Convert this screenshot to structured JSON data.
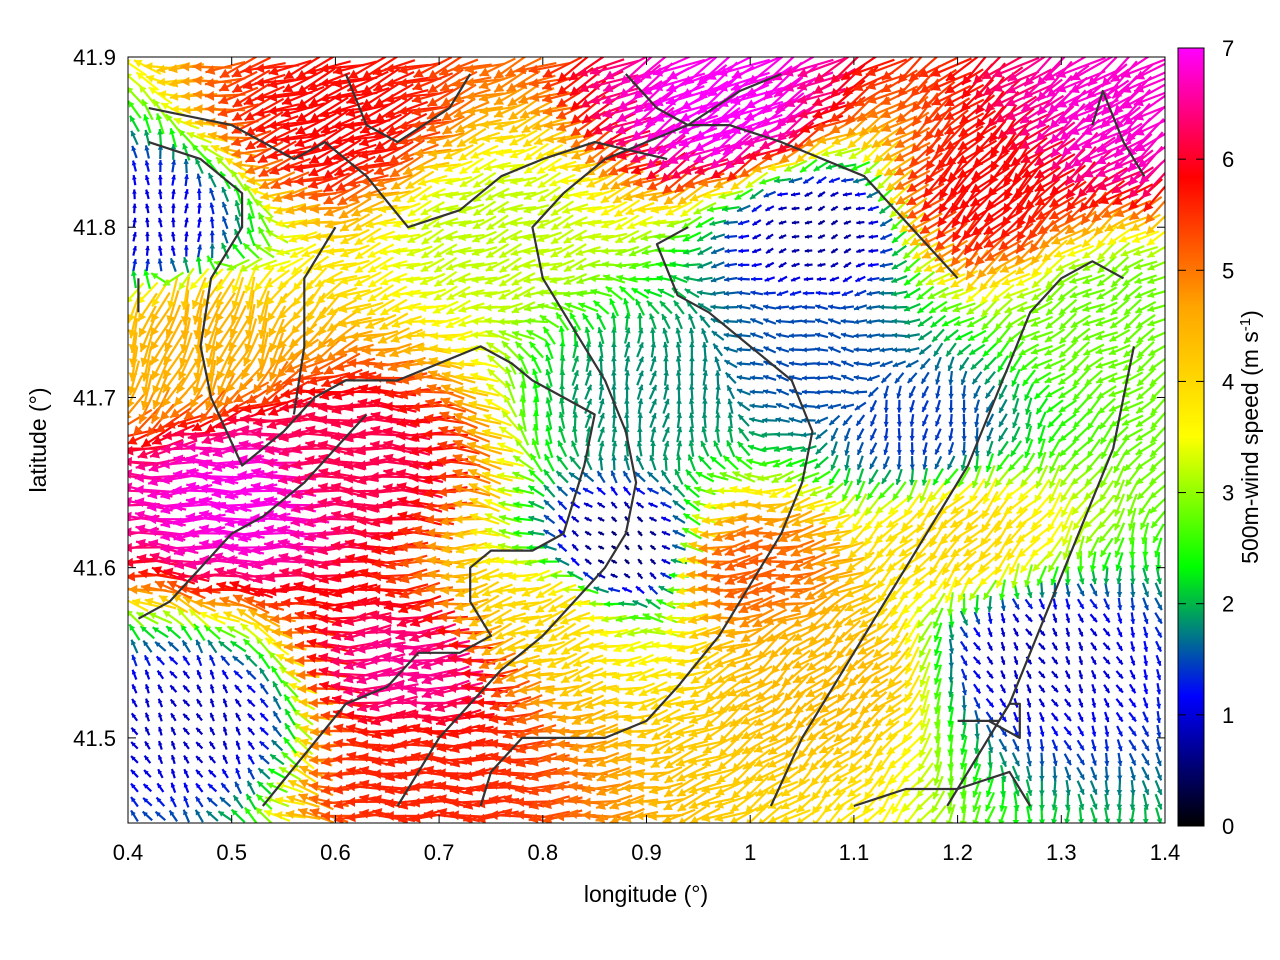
{
  "chart_data": {
    "type": "vector-field",
    "xlabel": "longitude (°)",
    "ylabel": "latitude (°)",
    "xlim": [
      0.4,
      1.4
    ],
    "ylim": [
      41.45,
      41.9
    ],
    "xticks": [
      "0.4",
      "0.5",
      "0.6",
      "0.7",
      "0.8",
      "0.9",
      "1",
      "1.1",
      "1.2",
      "1.3",
      "1.4"
    ],
    "xtick_values": [
      0.4,
      0.5,
      0.6,
      0.7,
      0.8,
      0.9,
      1.0,
      1.1,
      1.2,
      1.3,
      1.4
    ],
    "yticks": [
      "41.5",
      "41.6",
      "41.7",
      "41.8",
      "41.9"
    ],
    "ytick_values": [
      41.5,
      41.6,
      41.7,
      41.8,
      41.9
    ],
    "colorbar": {
      "label_main": "500m-wind speed (m s",
      "label_sup": "-1",
      "label_close": ")",
      "range": [
        0,
        7
      ],
      "ticks": [
        "0",
        "1",
        "2",
        "3",
        "4",
        "5",
        "6",
        "7"
      ],
      "tick_values": [
        0,
        1,
        2,
        3,
        4,
        5,
        6,
        7
      ],
      "colors": [
        "#000000",
        "#0000ff",
        "#00ff00",
        "#ffff00",
        "#ffa500",
        "#ff0000",
        "#ff00ff"
      ]
    },
    "wind_regions": [
      {
        "lon": 0.52,
        "lat": 41.64,
        "speed": 6.9,
        "dir_deg": 180
      },
      {
        "lon": 0.68,
        "lat": 41.54,
        "speed": 6.5,
        "dir_deg": 185
      },
      {
        "lon": 0.62,
        "lat": 41.66,
        "speed": 6.2,
        "dir_deg": 178
      },
      {
        "lon": 0.6,
        "lat": 41.86,
        "speed": 5.8,
        "dir_deg": 200
      },
      {
        "lon": 0.98,
        "lat": 41.87,
        "speed": 7.0,
        "dir_deg": 210
      },
      {
        "lon": 1.36,
        "lat": 41.87,
        "speed": 6.8,
        "dir_deg": 215
      },
      {
        "lon": 1.22,
        "lat": 41.82,
        "speed": 5.8,
        "dir_deg": 225
      },
      {
        "lon": 0.68,
        "lat": 41.48,
        "speed": 5.6,
        "dir_deg": 180
      },
      {
        "lon": 1.0,
        "lat": 41.6,
        "speed": 5.2,
        "dir_deg": 190
      },
      {
        "lon": 1.08,
        "lat": 41.54,
        "speed": 4.4,
        "dir_deg": 220
      },
      {
        "lon": 0.8,
        "lat": 41.57,
        "speed": 4.0,
        "dir_deg": 200
      },
      {
        "lon": 0.46,
        "lat": 41.74,
        "speed": 4.5,
        "dir_deg": 250
      },
      {
        "lon": 0.75,
        "lat": 41.8,
        "speed": 3.2,
        "dir_deg": 200
      },
      {
        "lon": 1.2,
        "lat": 41.62,
        "speed": 4.0,
        "dir_deg": 225
      },
      {
        "lon": 1.35,
        "lat": 41.75,
        "speed": 2.8,
        "dir_deg": 210
      },
      {
        "lon": 1.06,
        "lat": 41.72,
        "speed": 1.5,
        "dir_deg": 170
      },
      {
        "lon": 0.9,
        "lat": 41.7,
        "speed": 1.8,
        "dir_deg": 80
      },
      {
        "lon": 1.27,
        "lat": 41.55,
        "speed": 0.9,
        "dir_deg": 300
      },
      {
        "lon": 0.47,
        "lat": 41.51,
        "speed": 0.9,
        "dir_deg": 120
      },
      {
        "lon": 0.42,
        "lat": 41.8,
        "speed": 1.0,
        "dir_deg": 90
      },
      {
        "lon": 0.88,
        "lat": 41.61,
        "speed": 0.5,
        "dir_deg": 140
      },
      {
        "lon": 1.07,
        "lat": 41.8,
        "speed": 0.7,
        "dir_deg": 200
      },
      {
        "lon": 1.16,
        "lat": 41.68,
        "speed": 1.4,
        "dir_deg": 260
      }
    ],
    "contours": [
      [
        [
          0.42,
          41.87
        ],
        [
          0.5,
          41.86
        ],
        [
          0.56,
          41.84
        ],
        [
          0.59,
          41.85
        ],
        [
          0.63,
          41.83
        ],
        [
          0.67,
          41.8
        ],
        [
          0.72,
          41.81
        ],
        [
          0.76,
          41.83
        ],
        [
          0.8,
          41.84
        ],
        [
          0.85,
          41.85
        ],
        [
          0.92,
          41.84
        ]
      ],
      [
        [
          0.42,
          41.85
        ],
        [
          0.47,
          41.84
        ],
        [
          0.51,
          41.82
        ],
        [
          0.51,
          41.8
        ],
        [
          0.48,
          41.77
        ],
        [
          0.47,
          41.73
        ],
        [
          0.48,
          41.7
        ],
        [
          0.51,
          41.66
        ],
        [
          0.55,
          41.68
        ],
        [
          0.58,
          41.7
        ],
        [
          0.61,
          41.71
        ],
        [
          0.66,
          41.71
        ],
        [
          0.7,
          41.72
        ],
        [
          0.74,
          41.73
        ],
        [
          0.77,
          41.72
        ],
        [
          0.79,
          41.71
        ],
        [
          0.82,
          41.7
        ],
        [
          0.85,
          41.69
        ],
        [
          0.84,
          41.66
        ],
        [
          0.82,
          41.62
        ],
        [
          0.79,
          41.61
        ],
        [
          0.75,
          41.61
        ],
        [
          0.73,
          41.6
        ],
        [
          0.73,
          41.58
        ],
        [
          0.75,
          41.56
        ],
        [
          0.72,
          41.55
        ],
        [
          0.68,
          41.55
        ],
        [
          0.65,
          41.53
        ],
        [
          0.61,
          41.52
        ],
        [
          0.57,
          41.49
        ],
        [
          0.53,
          41.46
        ]
      ],
      [
        [
          0.41,
          41.57
        ],
        [
          0.44,
          41.58
        ],
        [
          0.47,
          41.6
        ],
        [
          0.5,
          41.62
        ],
        [
          0.53,
          41.63
        ],
        [
          0.57,
          41.65
        ],
        [
          0.6,
          41.67
        ],
        [
          0.63,
          41.69
        ]
      ],
      [
        [
          0.6,
          41.8
        ],
        [
          0.57,
          41.77
        ],
        [
          0.57,
          41.73
        ],
        [
          0.56,
          41.69
        ]
      ],
      [
        [
          0.94,
          41.8
        ],
        [
          0.91,
          41.79
        ],
        [
          0.93,
          41.76
        ],
        [
          0.96,
          41.75
        ],
        [
          1.0,
          41.73
        ],
        [
          1.04,
          41.71
        ],
        [
          1.06,
          41.68
        ],
        [
          1.05,
          41.65
        ],
        [
          1.03,
          41.62
        ],
        [
          1.0,
          41.59
        ],
        [
          0.97,
          41.56
        ],
        [
          0.93,
          41.53
        ],
        [
          0.9,
          41.51
        ],
        [
          0.86,
          41.5
        ],
        [
          0.82,
          41.5
        ],
        [
          0.78,
          41.5
        ],
        [
          0.75,
          41.48
        ],
        [
          0.74,
          41.46
        ]
      ],
      [
        [
          0.66,
          41.46
        ],
        [
          0.68,
          41.48
        ],
        [
          0.7,
          41.5
        ],
        [
          0.73,
          41.52
        ],
        [
          0.76,
          41.54
        ],
        [
          0.8,
          41.56
        ],
        [
          0.83,
          41.58
        ],
        [
          0.86,
          41.6
        ],
        [
          0.88,
          41.62
        ],
        [
          0.89,
          41.65
        ],
        [
          0.88,
          41.68
        ],
        [
          0.86,
          41.71
        ],
        [
          0.83,
          41.74
        ],
        [
          0.8,
          41.77
        ],
        [
          0.79,
          41.8
        ],
        [
          0.82,
          41.82
        ],
        [
          0.86,
          41.84
        ],
        [
          0.9,
          41.85
        ],
        [
          0.94,
          41.86
        ],
        [
          0.98,
          41.86
        ],
        [
          1.03,
          41.85
        ],
        [
          1.07,
          41.84
        ],
        [
          1.11,
          41.83
        ],
        [
          1.14,
          41.81
        ],
        [
          1.17,
          41.79
        ],
        [
          1.2,
          41.77
        ]
      ],
      [
        [
          1.02,
          41.46
        ],
        [
          1.05,
          41.5
        ],
        [
          1.09,
          41.54
        ],
        [
          1.12,
          41.57
        ],
        [
          1.15,
          41.6
        ],
        [
          1.18,
          41.63
        ],
        [
          1.21,
          41.66
        ],
        [
          1.23,
          41.69
        ],
        [
          1.25,
          41.72
        ],
        [
          1.27,
          41.75
        ],
        [
          1.3,
          41.77
        ],
        [
          1.33,
          41.78
        ],
        [
          1.36,
          41.77
        ]
      ],
      [
        [
          1.19,
          41.46
        ],
        [
          1.22,
          41.49
        ],
        [
          1.25,
          41.52
        ],
        [
          1.27,
          41.55
        ],
        [
          1.29,
          41.58
        ],
        [
          1.31,
          41.61
        ],
        [
          1.33,
          41.64
        ],
        [
          1.35,
          41.67
        ],
        [
          1.36,
          41.7
        ],
        [
          1.37,
          41.73
        ]
      ],
      [
        [
          1.1,
          41.46
        ],
        [
          1.15,
          41.47
        ],
        [
          1.2,
          41.47
        ],
        [
          1.25,
          41.48
        ],
        [
          1.27,
          41.46
        ]
      ],
      [
        [
          1.2,
          41.51
        ],
        [
          1.24,
          41.51
        ],
        [
          1.25,
          41.52
        ],
        [
          1.26,
          41.52
        ],
        [
          1.26,
          41.5
        ],
        [
          1.23,
          41.51
        ]
      ],
      [
        [
          1.33,
          41.86
        ],
        [
          1.34,
          41.88
        ],
        [
          1.36,
          41.85
        ],
        [
          1.38,
          41.83
        ]
      ],
      [
        [
          0.61,
          41.89
        ],
        [
          0.63,
          41.86
        ],
        [
          0.66,
          41.85
        ],
        [
          0.71,
          41.87
        ],
        [
          0.73,
          41.89
        ]
      ],
      [
        [
          0.88,
          41.89
        ],
        [
          0.91,
          41.87
        ],
        [
          0.94,
          41.86
        ],
        [
          0.99,
          41.88
        ],
        [
          1.03,
          41.89
        ]
      ],
      [
        [
          0.41,
          41.77
        ],
        [
          0.41,
          41.75
        ]
      ]
    ]
  }
}
